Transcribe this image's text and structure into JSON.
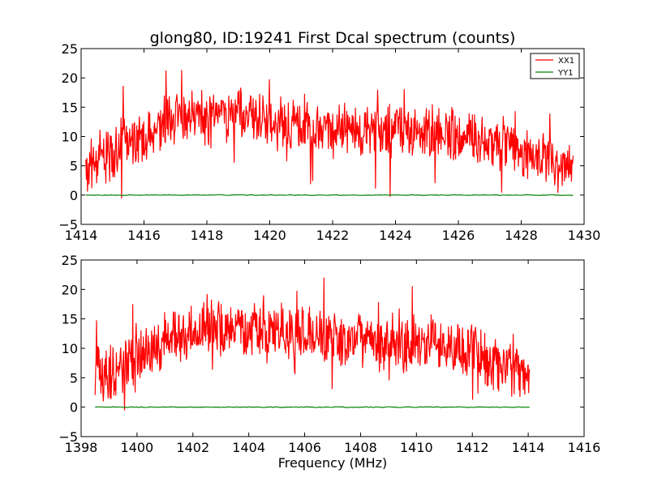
{
  "chart_data": [
    {
      "type": "line",
      "title": "glong80, ID:19241 First Dcal spectrum (counts)",
      "xlabel": "",
      "ylabel": "",
      "xlim": [
        1414,
        1430
      ],
      "ylim": [
        -5,
        25
      ],
      "xticks": [
        "1414",
        "1416",
        "1418",
        "1420",
        "1422",
        "1424",
        "1426",
        "1428",
        "1430"
      ],
      "yticks": [
        "25",
        "20",
        "15",
        "10",
        "5",
        "0",
        "−5"
      ],
      "legend": {
        "location": "top-right",
        "entries": [
          "XX1",
          "YY1"
        ]
      },
      "series": [
        {
          "name": "XX1",
          "color": "#ff0000",
          "x": [
            1414.15,
            1414.5,
            1415.0,
            1415.5,
            1416.0,
            1416.5,
            1417.0,
            1417.5,
            1418.0,
            1418.5,
            1419.0,
            1419.5,
            1420.0,
            1420.5,
            1421.0,
            1421.5,
            1422.0,
            1422.5,
            1423.0,
            1423.5,
            1424.0,
            1424.5,
            1425.0,
            1425.5,
            1426.0,
            1426.5,
            1427.0,
            1427.5,
            1428.0,
            1428.5,
            1429.0,
            1429.65
          ],
          "y": [
            5.0,
            6.0,
            7.0,
            9.0,
            10.5,
            12.0,
            13.0,
            13.5,
            13.0,
            13.5,
            13.5,
            13.0,
            12.5,
            12.0,
            11.5,
            11.5,
            11.0,
            11.0,
            11.0,
            11.0,
            11.0,
            11.0,
            10.5,
            10.5,
            10.0,
            10.0,
            9.5,
            9.0,
            7.5,
            6.0,
            5.0,
            5.0
          ]
        },
        {
          "name": "YY1",
          "color": "#008000",
          "x": [
            1414.15,
            1429.65
          ],
          "y": [
            0.0,
            0.0
          ]
        }
      ]
    },
    {
      "type": "line",
      "title": "",
      "xlabel": "Frequency (MHz)",
      "ylabel": "",
      "xlim": [
        1398,
        1416
      ],
      "ylim": [
        -5,
        25
      ],
      "xticks": [
        "1398",
        "1400",
        "1402",
        "1404",
        "1406",
        "1408",
        "1410",
        "1412",
        "1414",
        "1416"
      ],
      "yticks": [
        "25",
        "20",
        "15",
        "10",
        "5",
        "0",
        "−5"
      ],
      "series": [
        {
          "name": "XX1",
          "color": "#ff0000",
          "x": [
            1398.5,
            1399.0,
            1399.5,
            1400.0,
            1400.5,
            1401.0,
            1401.5,
            1402.0,
            1402.5,
            1403.0,
            1403.5,
            1404.0,
            1404.5,
            1405.0,
            1405.5,
            1406.0,
            1406.5,
            1407.0,
            1407.5,
            1408.0,
            1408.5,
            1409.0,
            1409.5,
            1410.0,
            1410.5,
            1411.0,
            1411.5,
            1412.0,
            1412.5,
            1413.0,
            1413.5,
            1414.05
          ],
          "y": [
            6.5,
            6.0,
            7.0,
            8.5,
            10.5,
            11.5,
            12.5,
            13.0,
            13.5,
            13.5,
            13.5,
            13.0,
            13.0,
            13.0,
            12.5,
            12.5,
            12.0,
            12.0,
            11.5,
            11.0,
            11.0,
            11.0,
            11.0,
            11.0,
            11.0,
            11.0,
            10.5,
            10.0,
            8.5,
            7.0,
            6.0,
            5.5
          ]
        },
        {
          "name": "YY1",
          "color": "#008000",
          "x": [
            1398.5,
            1414.05
          ],
          "y": [
            0.0,
            0.0
          ]
        }
      ]
    }
  ]
}
